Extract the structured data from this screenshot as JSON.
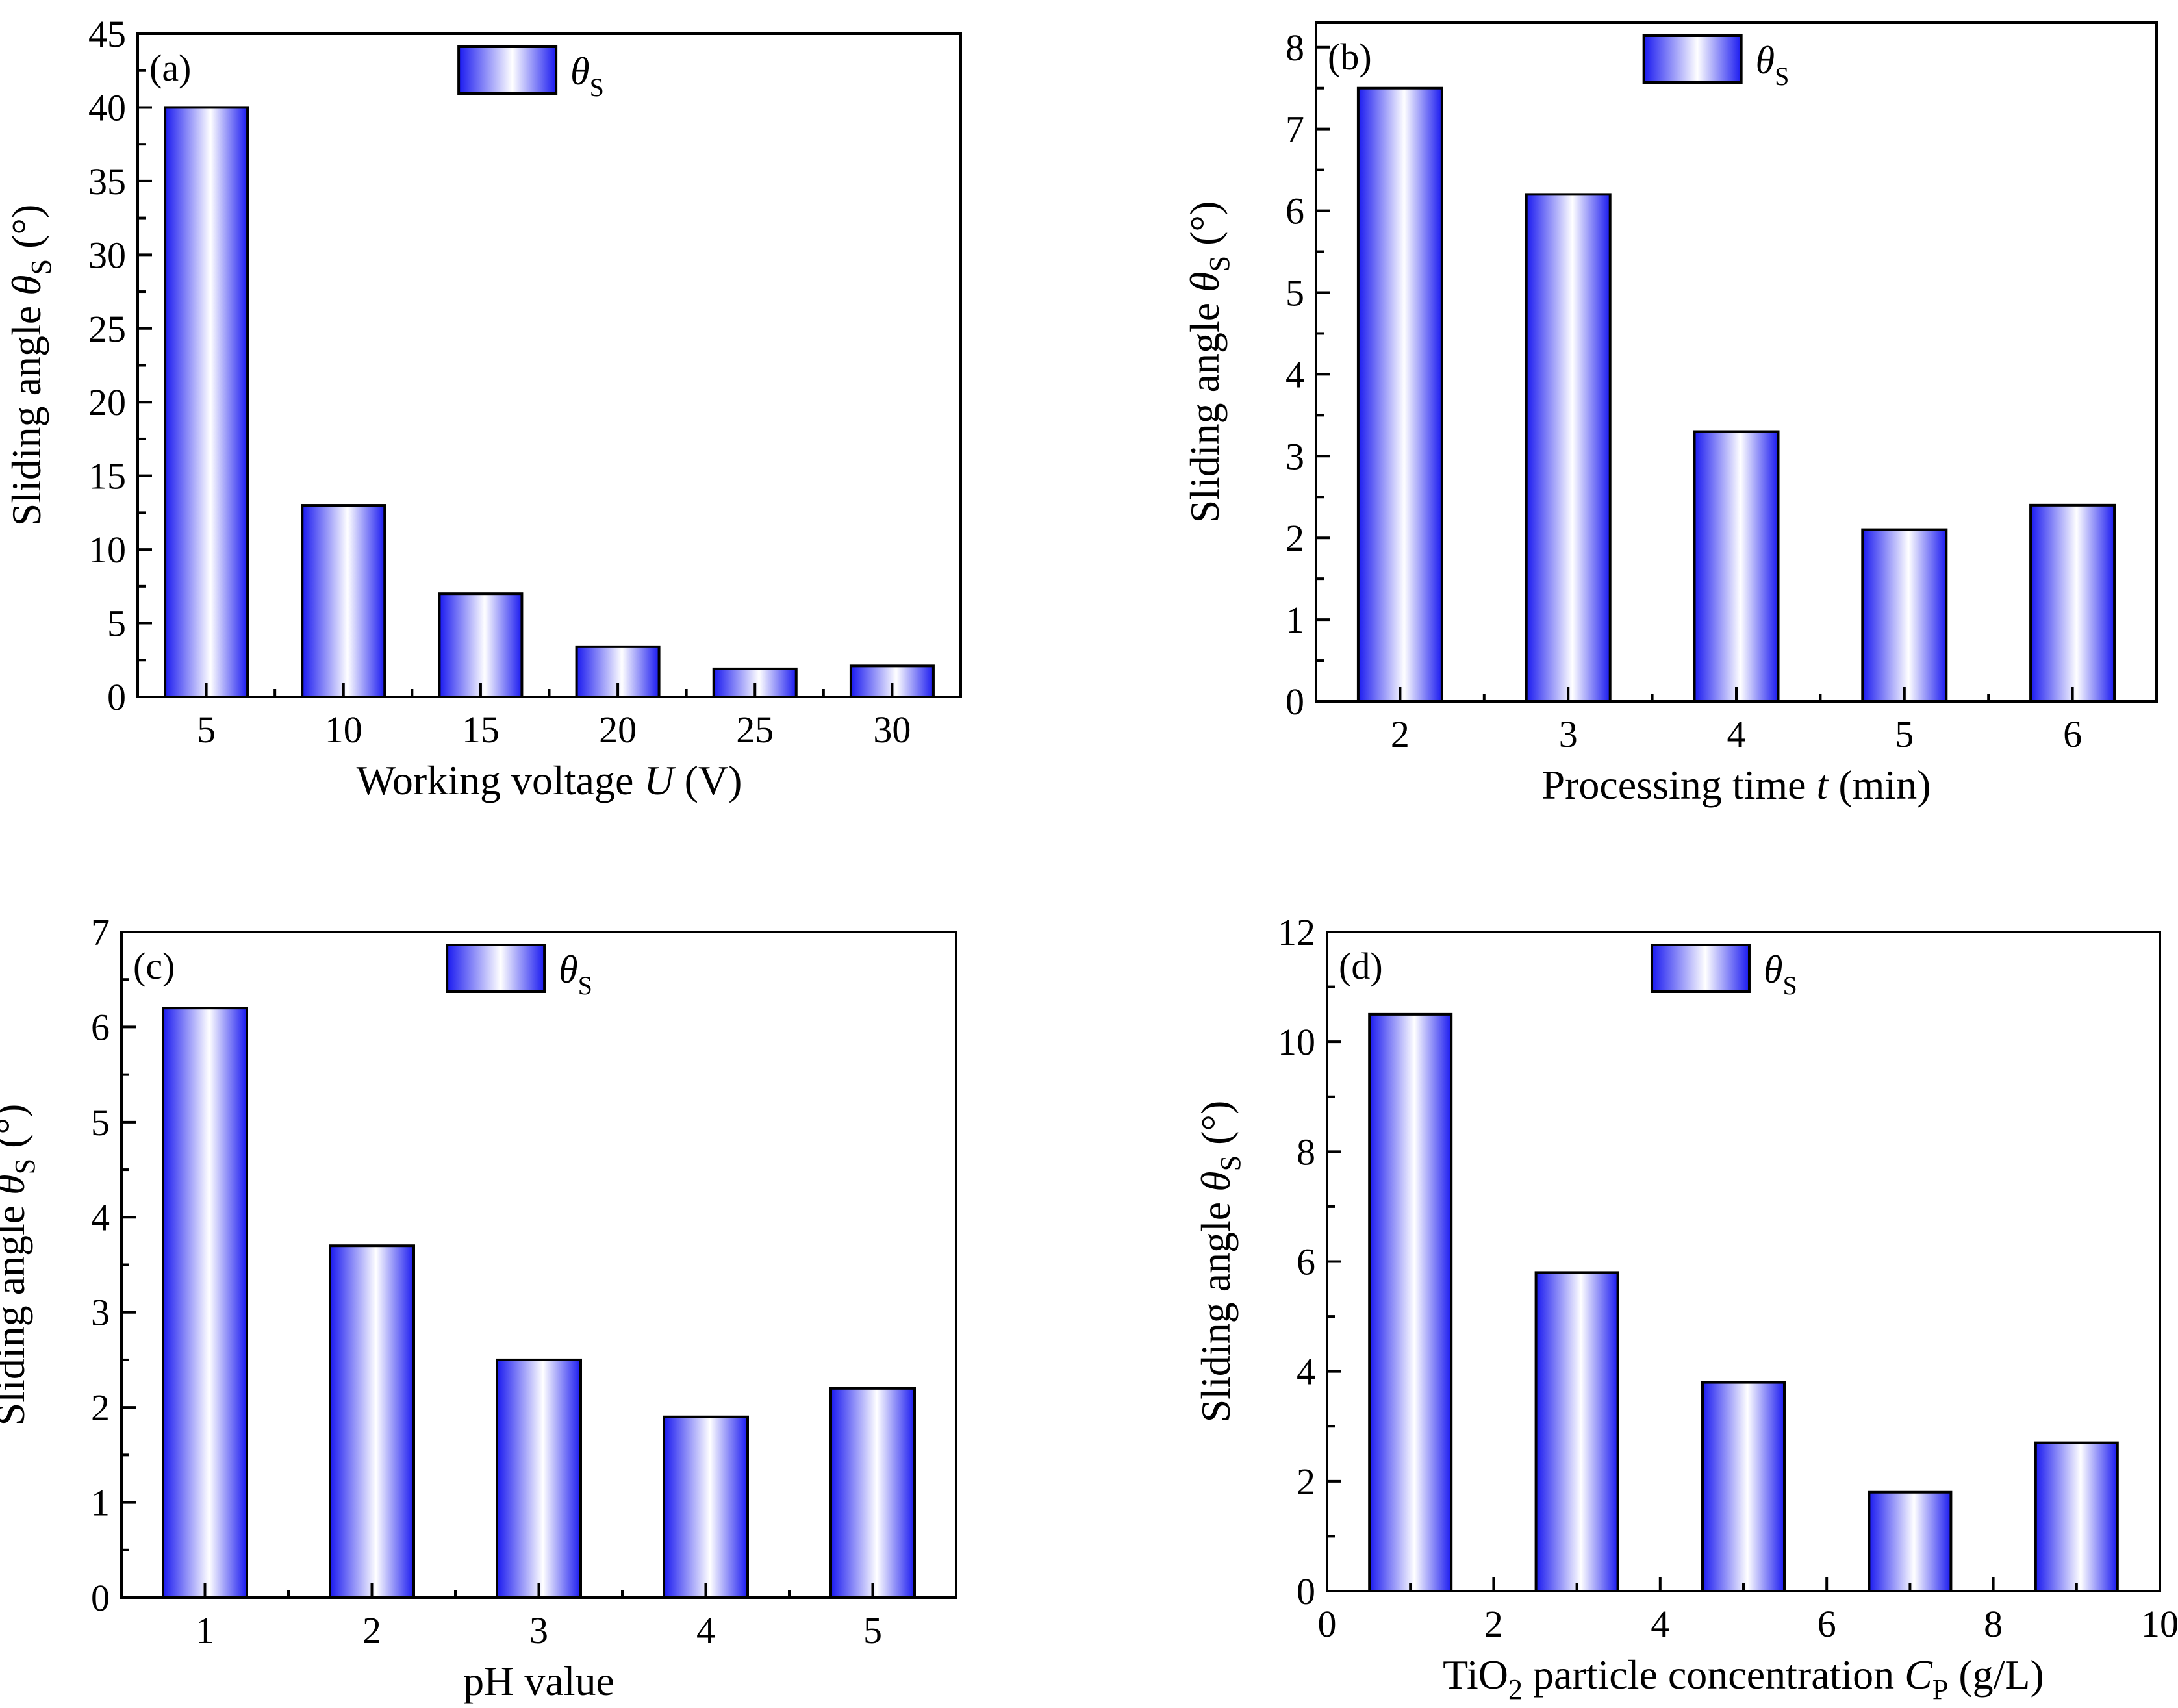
{
  "bar_gradient": [
    "#1a1af0",
    "#ffffff"
  ],
  "legend_label": "θ",
  "legend_sub": "S",
  "chart_data": [
    {
      "panel": "(a)",
      "type": "bar",
      "categories": [
        "5",
        "10",
        "15",
        "20",
        "25",
        "30"
      ],
      "values": [
        40,
        13,
        7,
        3.4,
        1.9,
        2.1
      ],
      "ylim": [
        0,
        45
      ],
      "yticks": [
        0,
        5,
        10,
        15,
        20,
        25,
        30,
        35,
        40,
        45
      ],
      "ylabel": "Sliding angle θS (°)",
      "xlabel": "Working voltage U (V)",
      "legend": "θS",
      "legend_position": "top-center"
    },
    {
      "panel": "(b)",
      "type": "bar",
      "categories": [
        "2",
        "3",
        "4",
        "5",
        "6"
      ],
      "values": [
        7.5,
        6.2,
        3.3,
        2.1,
        2.4
      ],
      "ylim": [
        0,
        8.3
      ],
      "yticks": [
        0,
        1,
        2,
        3,
        4,
        5,
        6,
        7,
        8
      ],
      "ylabel": "Sliding angle θS (°)",
      "xlabel": "Processing time t (min)",
      "legend": "θS",
      "legend_position": "top-center"
    },
    {
      "panel": "(c)",
      "type": "bar",
      "categories": [
        "1",
        "2",
        "3",
        "4",
        "5"
      ],
      "values": [
        6.2,
        3.7,
        2.5,
        1.9,
        2.2
      ],
      "ylim": [
        0,
        7
      ],
      "yticks": [
        0,
        1,
        2,
        3,
        4,
        5,
        6,
        7
      ],
      "ylabel": "Sliding angle θS (°)",
      "xlabel": "pH value",
      "legend": "θS",
      "legend_position": "top-center"
    },
    {
      "panel": "(d)",
      "type": "bar",
      "x": [
        1,
        3,
        5,
        7,
        9
      ],
      "values": [
        10.5,
        5.8,
        3.8,
        1.8,
        2.7
      ],
      "bar_width": 1,
      "xlim": [
        0,
        10
      ],
      "xticks": [
        0,
        2,
        4,
        6,
        8,
        10
      ],
      "ylim": [
        0,
        12
      ],
      "yticks": [
        0,
        2,
        4,
        6,
        8,
        10,
        12
      ],
      "ylabel": "Sliding angle θS (°)",
      "xlabel": "TiO2 particle concentration CP (g/L)",
      "legend": "θS",
      "legend_position": "top-center"
    }
  ]
}
